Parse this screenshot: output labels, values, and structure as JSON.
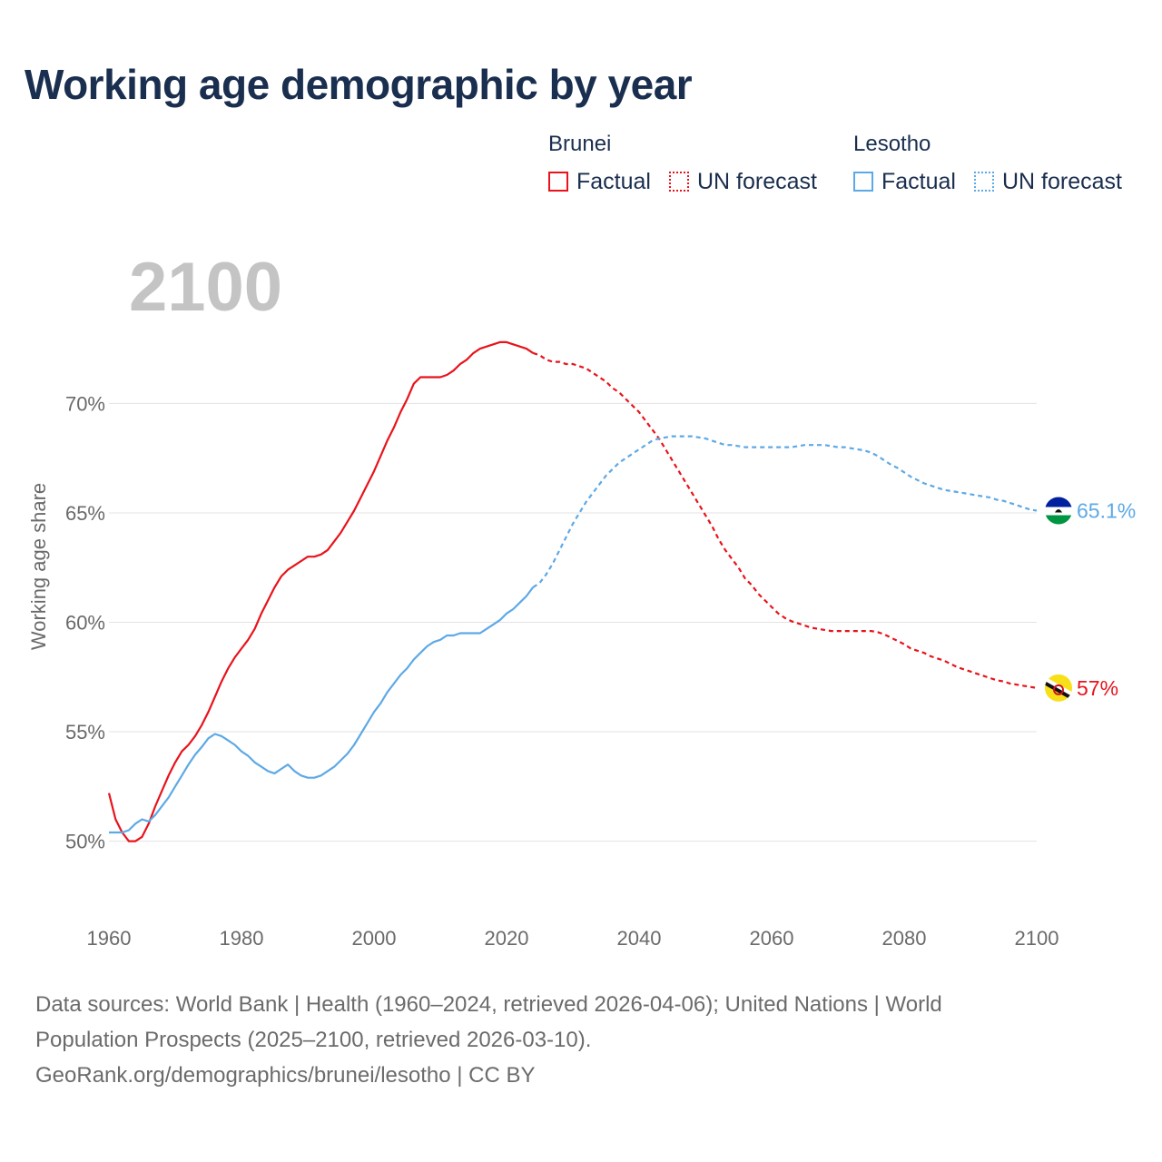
{
  "title": "Working age demographic by year",
  "legend": {
    "groups": [
      {
        "country": "Brunei",
        "color": "#e8131b",
        "factual_label": "Factual",
        "forecast_label": "UN forecast"
      },
      {
        "country": "Lesotho",
        "color": "#5da9e6",
        "factual_label": "Factual",
        "forecast_label": "UN forecast"
      }
    ]
  },
  "year_overlay": "2100",
  "chart_data": {
    "type": "line",
    "title": "Working age demographic by year",
    "xlabel": "",
    "ylabel": "Working age share",
    "xlim": [
      1960,
      2100
    ],
    "ylim": [
      48.2,
      73.5
    ],
    "x_ticks": [
      "1960",
      "1980",
      "2000",
      "2020",
      "2040",
      "2060",
      "2080",
      "2100"
    ],
    "y_ticks": [
      "50%",
      "55%",
      "60%",
      "65%",
      "70%"
    ],
    "grid": true,
    "series": [
      {
        "name": "Brunei",
        "color": "#e8131b",
        "factual_x": [
          1960,
          1961,
          1962,
          1963,
          1964,
          1965,
          1966,
          1967,
          1968,
          1969,
          1970,
          1971,
          1972,
          1973,
          1974,
          1975,
          1976,
          1977,
          1978,
          1979,
          1980,
          1981,
          1982,
          1983,
          1984,
          1985,
          1986,
          1987,
          1988,
          1989,
          1990,
          1991,
          1992,
          1993,
          1994,
          1995,
          1996,
          1997,
          1998,
          1999,
          2000,
          2001,
          2002,
          2003,
          2004,
          2005,
          2006,
          2007,
          2008,
          2009,
          2010,
          2011,
          2012,
          2013,
          2014,
          2015,
          2016,
          2017,
          2018,
          2019,
          2020,
          2021,
          2022,
          2023,
          2024
        ],
        "factual_y": [
          52.2,
          51.0,
          50.4,
          50.0,
          50.0,
          50.2,
          50.8,
          51.6,
          52.3,
          53.0,
          53.6,
          54.1,
          54.4,
          54.8,
          55.3,
          55.9,
          56.6,
          57.3,
          57.9,
          58.4,
          58.8,
          59.2,
          59.7,
          60.4,
          61.0,
          61.6,
          62.1,
          62.4,
          62.6,
          62.8,
          63.0,
          63.0,
          63.1,
          63.3,
          63.7,
          64.1,
          64.6,
          65.1,
          65.7,
          66.3,
          66.9,
          67.6,
          68.3,
          68.9,
          69.6,
          70.2,
          70.9,
          71.2,
          71.2,
          71.2,
          71.2,
          71.3,
          71.5,
          71.8,
          72.0,
          72.3,
          72.5,
          72.6,
          72.7,
          72.8,
          72.8,
          72.7,
          72.6,
          72.5,
          72.3
        ],
        "forecast_x": [
          2024,
          2025,
          2026,
          2027,
          2028,
          2029,
          2030,
          2031,
          2032,
          2033,
          2034,
          2035,
          2036,
          2037,
          2038,
          2039,
          2040,
          2041,
          2042,
          2043,
          2044,
          2045,
          2046,
          2047,
          2048,
          2049,
          2050,
          2051,
          2052,
          2053,
          2054,
          2055,
          2056,
          2057,
          2058,
          2059,
          2060,
          2061,
          2062,
          2063,
          2064,
          2065,
          2066,
          2067,
          2068,
          2069,
          2070,
          2071,
          2072,
          2073,
          2074,
          2075,
          2076,
          2077,
          2078,
          2079,
          2080,
          2081,
          2082,
          2083,
          2084,
          2085,
          2086,
          2087,
          2088,
          2089,
          2090,
          2091,
          2092,
          2093,
          2094,
          2095,
          2096,
          2097,
          2098,
          2099,
          2100
        ],
        "forecast_y": [
          72.3,
          72.2,
          72.0,
          71.9,
          71.9,
          71.8,
          71.8,
          71.7,
          71.6,
          71.4,
          71.2,
          71.0,
          70.7,
          70.5,
          70.2,
          69.9,
          69.6,
          69.2,
          68.8,
          68.4,
          67.9,
          67.4,
          66.9,
          66.4,
          65.9,
          65.4,
          64.9,
          64.4,
          63.8,
          63.3,
          62.9,
          62.5,
          62.0,
          61.7,
          61.3,
          61.0,
          60.7,
          60.4,
          60.2,
          60.05,
          59.95,
          59.85,
          59.75,
          59.7,
          59.65,
          59.6,
          59.6,
          59.6,
          59.6,
          59.6,
          59.6,
          59.6,
          59.55,
          59.45,
          59.3,
          59.15,
          59.0,
          58.8,
          58.7,
          58.6,
          58.45,
          58.35,
          58.25,
          58.1,
          57.95,
          57.85,
          57.75,
          57.65,
          57.55,
          57.45,
          57.35,
          57.3,
          57.2,
          57.15,
          57.1,
          57.05,
          57.0
        ],
        "end_label": "57%"
      },
      {
        "name": "Lesotho",
        "color": "#5da9e6",
        "factual_x": [
          1960,
          1961,
          1962,
          1963,
          1964,
          1965,
          1966,
          1967,
          1968,
          1969,
          1970,
          1971,
          1972,
          1973,
          1974,
          1975,
          1976,
          1977,
          1978,
          1979,
          1980,
          1981,
          1982,
          1983,
          1984,
          1985,
          1986,
          1987,
          1988,
          1989,
          1990,
          1991,
          1992,
          1993,
          1994,
          1995,
          1996,
          1997,
          1998,
          1999,
          2000,
          2001,
          2002,
          2003,
          2004,
          2005,
          2006,
          2007,
          2008,
          2009,
          2010,
          2011,
          2012,
          2013,
          2014,
          2015,
          2016,
          2017,
          2018,
          2019,
          2020,
          2021,
          2022,
          2023,
          2024
        ],
        "factual_y": [
          50.4,
          50.4,
          50.4,
          50.5,
          50.8,
          51.0,
          50.9,
          51.2,
          51.6,
          52.0,
          52.5,
          53.0,
          53.5,
          53.95,
          54.3,
          54.7,
          54.9,
          54.8,
          54.6,
          54.4,
          54.1,
          53.9,
          53.6,
          53.4,
          53.2,
          53.1,
          53.3,
          53.5,
          53.2,
          53.0,
          52.9,
          52.9,
          53.0,
          53.2,
          53.4,
          53.7,
          54.0,
          54.4,
          54.9,
          55.4,
          55.9,
          56.3,
          56.8,
          57.2,
          57.6,
          57.9,
          58.3,
          58.6,
          58.9,
          59.1,
          59.2,
          59.4,
          59.4,
          59.5,
          59.5,
          59.5,
          59.5,
          59.7,
          59.9,
          60.1,
          60.4,
          60.6,
          60.9,
          61.2,
          61.6
        ],
        "forecast_x": [
          2024,
          2025,
          2026,
          2027,
          2028,
          2029,
          2030,
          2031,
          2032,
          2033,
          2034,
          2035,
          2036,
          2037,
          2038,
          2039,
          2040,
          2041,
          2042,
          2043,
          2044,
          2045,
          2046,
          2047,
          2048,
          2049,
          2050,
          2051,
          2052,
          2053,
          2054,
          2055,
          2056,
          2057,
          2058,
          2059,
          2060,
          2061,
          2062,
          2063,
          2064,
          2065,
          2066,
          2067,
          2068,
          2069,
          2070,
          2071,
          2072,
          2073,
          2074,
          2075,
          2076,
          2077,
          2078,
          2079,
          2080,
          2081,
          2082,
          2083,
          2084,
          2085,
          2086,
          2087,
          2088,
          2089,
          2090,
          2091,
          2092,
          2093,
          2094,
          2095,
          2096,
          2097,
          2098,
          2099,
          2100
        ],
        "forecast_y": [
          61.6,
          61.8,
          62.2,
          62.7,
          63.3,
          63.9,
          64.5,
          65.0,
          65.5,
          65.9,
          66.3,
          66.7,
          67.0,
          67.3,
          67.5,
          67.7,
          67.9,
          68.1,
          68.3,
          68.4,
          68.45,
          68.5,
          68.5,
          68.5,
          68.5,
          68.45,
          68.4,
          68.3,
          68.2,
          68.1,
          68.1,
          68.05,
          68.0,
          68.0,
          68.0,
          68.0,
          68.0,
          68.0,
          68.0,
          68.0,
          68.05,
          68.1,
          68.1,
          68.1,
          68.1,
          68.05,
          68.0,
          68.0,
          67.95,
          67.9,
          67.85,
          67.75,
          67.6,
          67.4,
          67.2,
          67.05,
          66.85,
          66.65,
          66.5,
          66.35,
          66.25,
          66.15,
          66.05,
          66.0,
          65.95,
          65.9,
          65.85,
          65.8,
          65.75,
          65.7,
          65.6,
          65.55,
          65.45,
          65.35,
          65.25,
          65.15,
          65.1
        ],
        "end_label": "65.1%"
      }
    ]
  },
  "footer": {
    "line1": "Data sources: World Bank | Health (1960–2024, retrieved 2026-04-06); United Nations | World",
    "line2": "Population Prospects (2025–2100, retrieved 2026-03-10).",
    "line3": "GeoRank.org/demographics/brunei/lesotho | CC BY"
  }
}
